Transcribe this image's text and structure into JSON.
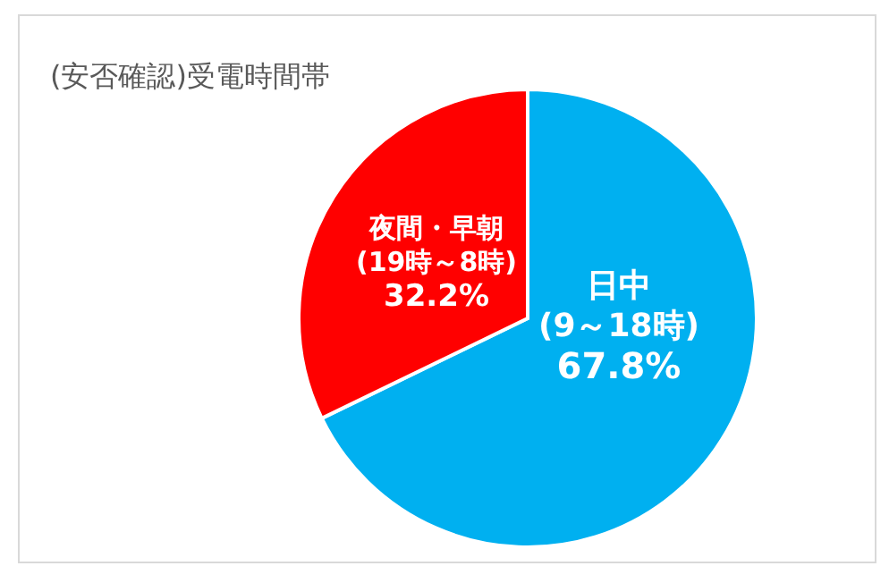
{
  "chart_data": {
    "type": "pie",
    "title": "(安否確認)受電時間帯",
    "categories": [
      "日中\n(9～18時)",
      "夜間・早朝\n(19時～8時)"
    ],
    "values": [
      67.8,
      32.2
    ],
    "value_labels": [
      "67.8%",
      "32.2%"
    ],
    "colors": [
      "#00b0f0",
      "#ff0000"
    ]
  }
}
